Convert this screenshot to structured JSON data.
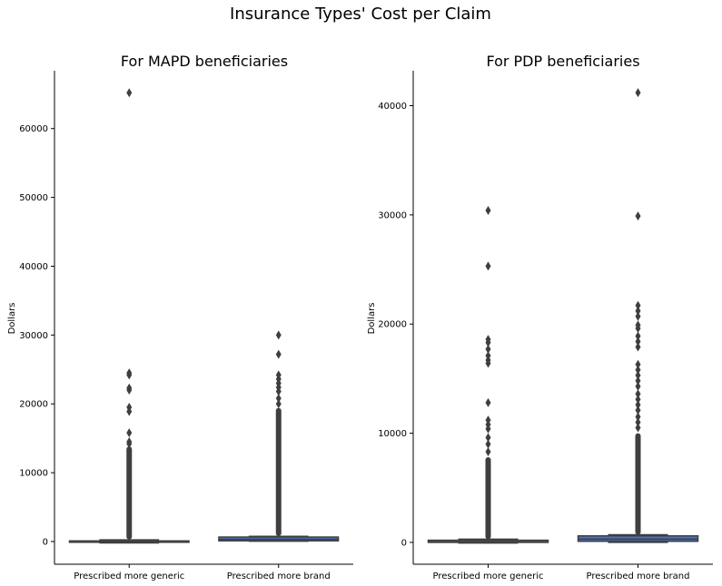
{
  "figure": {
    "title": "Insurance Types' Cost per Claim"
  },
  "chart_data": [
    {
      "type": "box",
      "title": "For MAPD beneficiaries",
      "xlabel": "",
      "ylabel": "Dollars",
      "categories": [
        "Prescribed more generic",
        "Prescribed more brand"
      ],
      "ylim": [
        -3300,
        68400
      ],
      "yticks": [
        0,
        10000,
        20000,
        30000,
        40000,
        50000,
        60000
      ],
      "grid": false,
      "box_color": "#4c72b0",
      "edge_color": "#3f3f3f",
      "boxes": [
        {
          "category": "Prescribed more generic",
          "min": -200,
          "q1": -30,
          "median": 30,
          "q3": 90,
          "max": 250,
          "outlier_band": [
            300,
            13800
          ],
          "outliers": [
            24500,
            24200,
            22300,
            22000,
            19500,
            18900,
            15800,
            14500,
            14200,
            65200
          ]
        },
        {
          "category": "Prescribed more brand",
          "min": 40,
          "q1": 100,
          "median": 300,
          "q3": 650,
          "max": 750,
          "outlier_band": [
            800,
            19400
          ],
          "outliers": [
            30000,
            27200,
            24200,
            23600,
            23000,
            22400,
            21800,
            20800,
            20000
          ]
        }
      ]
    },
    {
      "type": "box",
      "title": "For PDP beneficiaries",
      "xlabel": "",
      "ylabel": "Dollars",
      "categories": [
        "Prescribed more generic",
        "Prescribed more brand"
      ],
      "ylim": [
        -2000,
        43200
      ],
      "yticks": [
        0,
        10000,
        20000,
        30000,
        40000
      ],
      "grid": false,
      "box_color": "#4c72b0",
      "edge_color": "#3f3f3f",
      "boxes": [
        {
          "category": "Prescribed more generic",
          "min": -60,
          "q1": 0,
          "median": 60,
          "q3": 200,
          "max": 300,
          "outlier_band": [
            300,
            7800
          ],
          "outliers": [
            30400,
            25300,
            18600,
            18300,
            17700,
            17100,
            16700,
            16400,
            12800,
            11200,
            10800,
            10400,
            9600,
            9000,
            8300
          ]
        },
        {
          "category": "Prescribed more brand",
          "min": 0,
          "q1": 100,
          "median": 300,
          "q3": 600,
          "max": 700,
          "outlier_band": [
            700,
            10000
          ],
          "outliers": [
            41200,
            29900,
            21700,
            21200,
            20700,
            19900,
            19600,
            18900,
            18400,
            17900,
            16300,
            15800,
            15300,
            14800,
            14300,
            13600,
            13100,
            12600,
            12100,
            11500,
            11000,
            10500
          ]
        }
      ]
    }
  ]
}
